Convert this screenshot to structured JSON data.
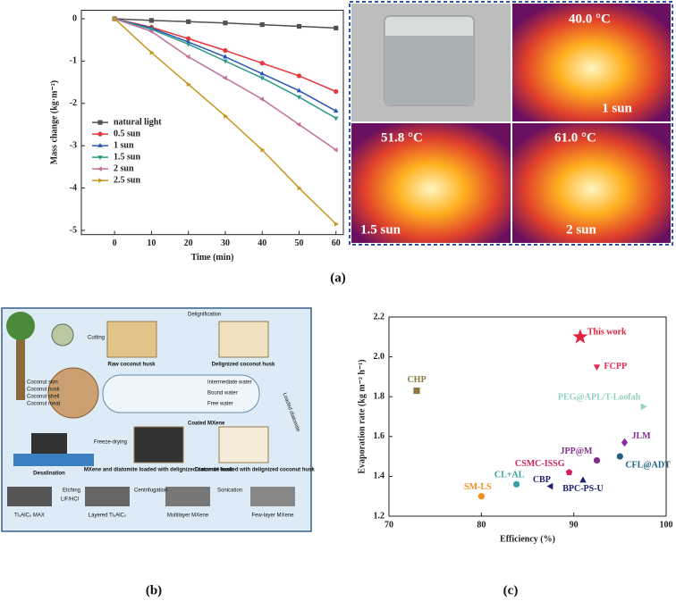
{
  "chart_data": [
    {
      "type": "line",
      "ylabel": "Mass change (kg·m⁻²)",
      "xlabel": "Time (min)",
      "x": [
        0,
        10,
        20,
        30,
        40,
        50,
        60
      ],
      "xlim": [
        -9,
        62
      ],
      "xticks": [
        0,
        10,
        20,
        30,
        40,
        50,
        60
      ],
      "ylim": [
        -5.1,
        0.2
      ],
      "yticks": [
        0,
        -1,
        -2,
        -3,
        -4,
        -5
      ],
      "legend": "center-left",
      "series": [
        {
          "name": "natural light",
          "color": "#505050",
          "marker": "square",
          "values": [
            0,
            -0.04,
            -0.07,
            -0.1,
            -0.14,
            -0.18,
            -0.22
          ]
        },
        {
          "name": "0.5 sun",
          "color": "#e8373a",
          "marker": "circle",
          "values": [
            0,
            -0.2,
            -0.47,
            -0.75,
            -1.05,
            -1.35,
            -1.72
          ]
        },
        {
          "name": "1 sun",
          "color": "#2a55b0",
          "marker": "triangle",
          "values": [
            0,
            -0.22,
            -0.55,
            -0.9,
            -1.3,
            -1.7,
            -2.18
          ]
        },
        {
          "name": "1.5 sun",
          "color": "#2a9a8c",
          "marker": "triangle-down",
          "values": [
            0,
            -0.25,
            -0.6,
            -1.0,
            -1.4,
            -1.85,
            -2.35
          ]
        },
        {
          "name": "2 sun",
          "color": "#c0709a",
          "marker": "triangle-left",
          "values": [
            0,
            -0.3,
            -0.9,
            -1.4,
            -1.9,
            -2.5,
            -3.1
          ]
        },
        {
          "name": "2.5 sun",
          "color": "#c8961e",
          "marker": "triangle-right",
          "values": [
            0,
            -0.8,
            -1.55,
            -2.3,
            -3.1,
            -4.0,
            -4.85
          ]
        }
      ]
    },
    {
      "type": "scatter",
      "xlabel": "Efficiency (%)",
      "ylabel": "Evaporation rate (kg m⁻² h⁻¹)",
      "xlim": [
        70,
        100
      ],
      "xticks": [
        70,
        80,
        90,
        100
      ],
      "ylim": [
        1.2,
        2.2
      ],
      "yticks": [
        1.2,
        1.4,
        1.6,
        1.8,
        {
          "value": 2,
          "label": "2.0"
        },
        2.2
      ],
      "points": [
        {
          "name": "This work",
          "x": 90.7,
          "y": 2.1,
          "color": "#e0203c",
          "marker": "star"
        },
        {
          "name": "FCPP",
          "x": 92.5,
          "y": 1.95,
          "color": "#e0305a",
          "marker": "triangle-down"
        },
        {
          "name": "CHP",
          "x": 73,
          "y": 1.83,
          "color": "#8a7a40",
          "marker": "square"
        },
        {
          "name": "PEG@APL/T-Loofah",
          "x": 97.5,
          "y": 1.75,
          "color": "#8fd0c0",
          "marker": "triangle-right"
        },
        {
          "name": "JLM",
          "x": 95.5,
          "y": 1.57,
          "color": "#8a2a9a",
          "marker": "diamond"
        },
        {
          "name": "JPP@M",
          "x": 92.5,
          "y": 1.48,
          "color": "#80308a",
          "marker": "circle"
        },
        {
          "name": "CFL@ADT",
          "x": 95,
          "y": 1.5,
          "color": "#206080",
          "marker": "circle"
        },
        {
          "name": "CSMC-ISSG",
          "x": 89.5,
          "y": 1.42,
          "color": "#d02060",
          "marker": "pentagon"
        },
        {
          "name": "CL+AL",
          "x": 83.8,
          "y": 1.36,
          "color": "#30a0a0",
          "marker": "circle"
        },
        {
          "name": "CBP",
          "x": 87.5,
          "y": 1.35,
          "color": "#202070",
          "marker": "triangle-left"
        },
        {
          "name": "BPC-PS-U",
          "x": 91,
          "y": 1.38,
          "color": "#202070",
          "marker": "triangle"
        },
        {
          "name": "SM-LS",
          "x": 80,
          "y": 1.3,
          "color": "#f09020",
          "marker": "circle"
        }
      ]
    }
  ],
  "photos": [
    {
      "temperature": "40.0 °C",
      "label": "1 sun"
    },
    {
      "temperature": "51.8 °C",
      "label": "1.5 sun"
    },
    {
      "temperature": "61.0 °C",
      "label": "2 sun"
    }
  ],
  "schematic": {
    "delignification": "Delignification",
    "cutting": "Cutting",
    "raw": "Raw coconut husk",
    "delignized": "Delignized coconut husk",
    "parts": [
      "Coconut skin",
      "Coconut husk",
      "Coconut shell",
      "Coconut meat"
    ],
    "water": [
      "Intermediate water",
      "Bound water",
      "Free water"
    ],
    "loaded": "Loaded diatomite",
    "coated": "Coated MXene",
    "freeze": "Freeze-drying",
    "desalination": "Desalination",
    "mxene_loaded": "MXene and diatomite loaded with delignized coconut husk",
    "diatomite_loaded": "Diatomite loaded with delignized coconut husk",
    "etching": "Etching",
    "lif": "LiF/HCl",
    "centrifugation": "Centrifugation",
    "sonication": "Sonication",
    "stages": [
      "Ti₃AlC₂ MAX",
      "Layered Ti₃AlC₂",
      "Multilayer MXene",
      "Few-layer MXene"
    ]
  },
  "panel_labels": [
    "(a)",
    "(b)",
    "(c)"
  ]
}
